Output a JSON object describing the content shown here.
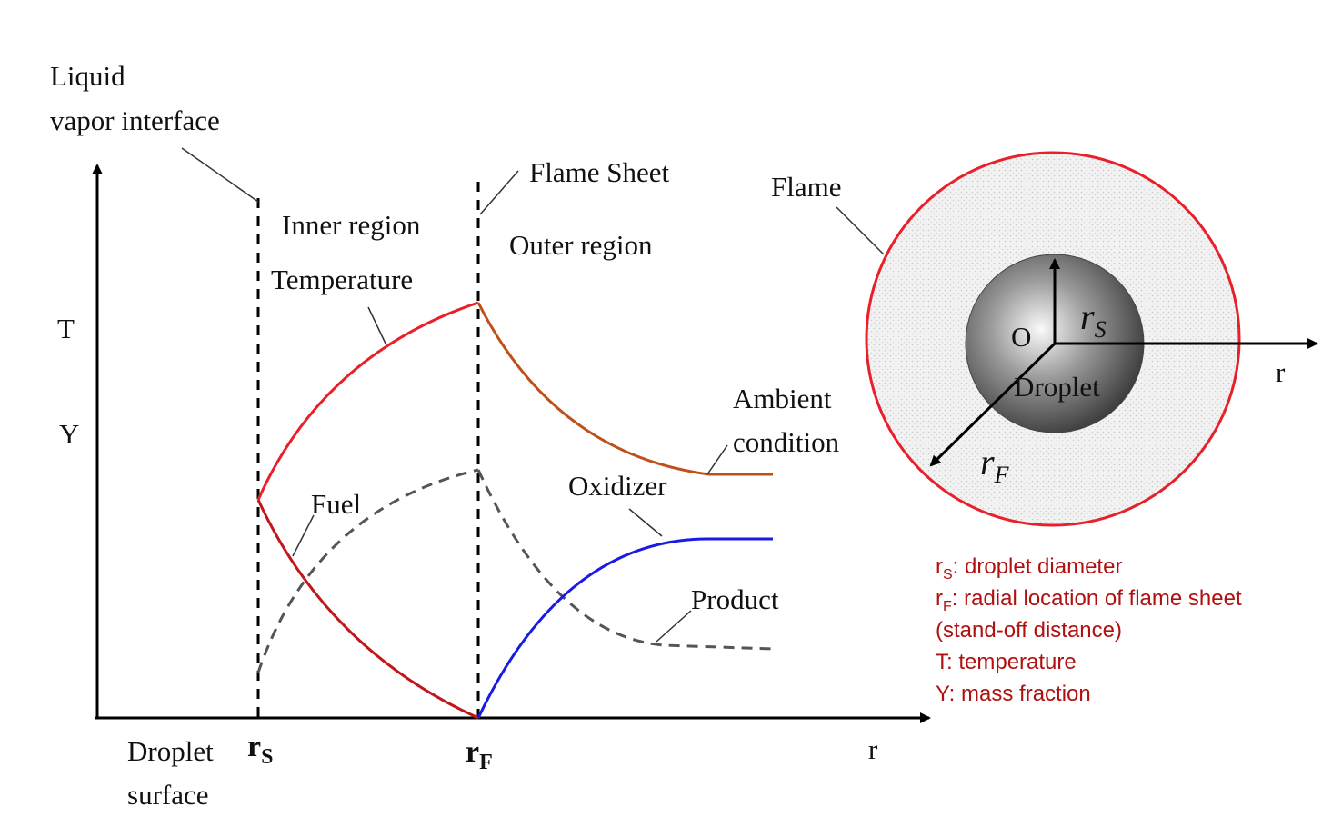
{
  "labels": {
    "interface_line1": "Liquid",
    "interface_line2": "vapor interface",
    "flame_sheet": "Flame Sheet",
    "inner_region": "Inner region",
    "outer_region": "Outer region",
    "temperature": "Temperature",
    "axis_T": "T",
    "axis_Y": "Y",
    "fuel": "Fuel",
    "oxidizer": "Oxidizer",
    "product": "Product",
    "ambient_line1": "Ambient",
    "ambient_line2": "condition",
    "droplet_surface_line1": "Droplet",
    "droplet_surface_line2": "surface",
    "rS_main": "r",
    "rS_sub": "S",
    "rF_main": "r",
    "rF_sub": "F",
    "x_axis_r": "r"
  },
  "droplet_diagram": {
    "flame": "Flame",
    "origin": "O",
    "droplet": "Droplet",
    "rs_main": "r",
    "rs_sub": "S",
    "rf_main": "r",
    "rf_sub": "F",
    "axis_r": "r"
  },
  "legend": [
    {
      "sym": "r",
      "sub": "S",
      "text": ": droplet  diameter"
    },
    {
      "sym": "r",
      "sub": "F",
      "text": ": radial location of  flame sheet"
    },
    {
      "sym": "",
      "sub": "",
      "text": "(stand-off distance)"
    },
    {
      "sym": "",
      "sub": "",
      "text": "T: temperature"
    },
    {
      "sym": "",
      "sub": "",
      "text": "Y: mass fraction"
    }
  ],
  "colors": {
    "temperature": "#e8202a",
    "fuel": "#c0161c",
    "temperature_outer": "#c0501a",
    "oxidizer": "#1a1ae6",
    "product": "#555555",
    "flame_ring": "#e8202a",
    "legend_text": "#b01010"
  }
}
